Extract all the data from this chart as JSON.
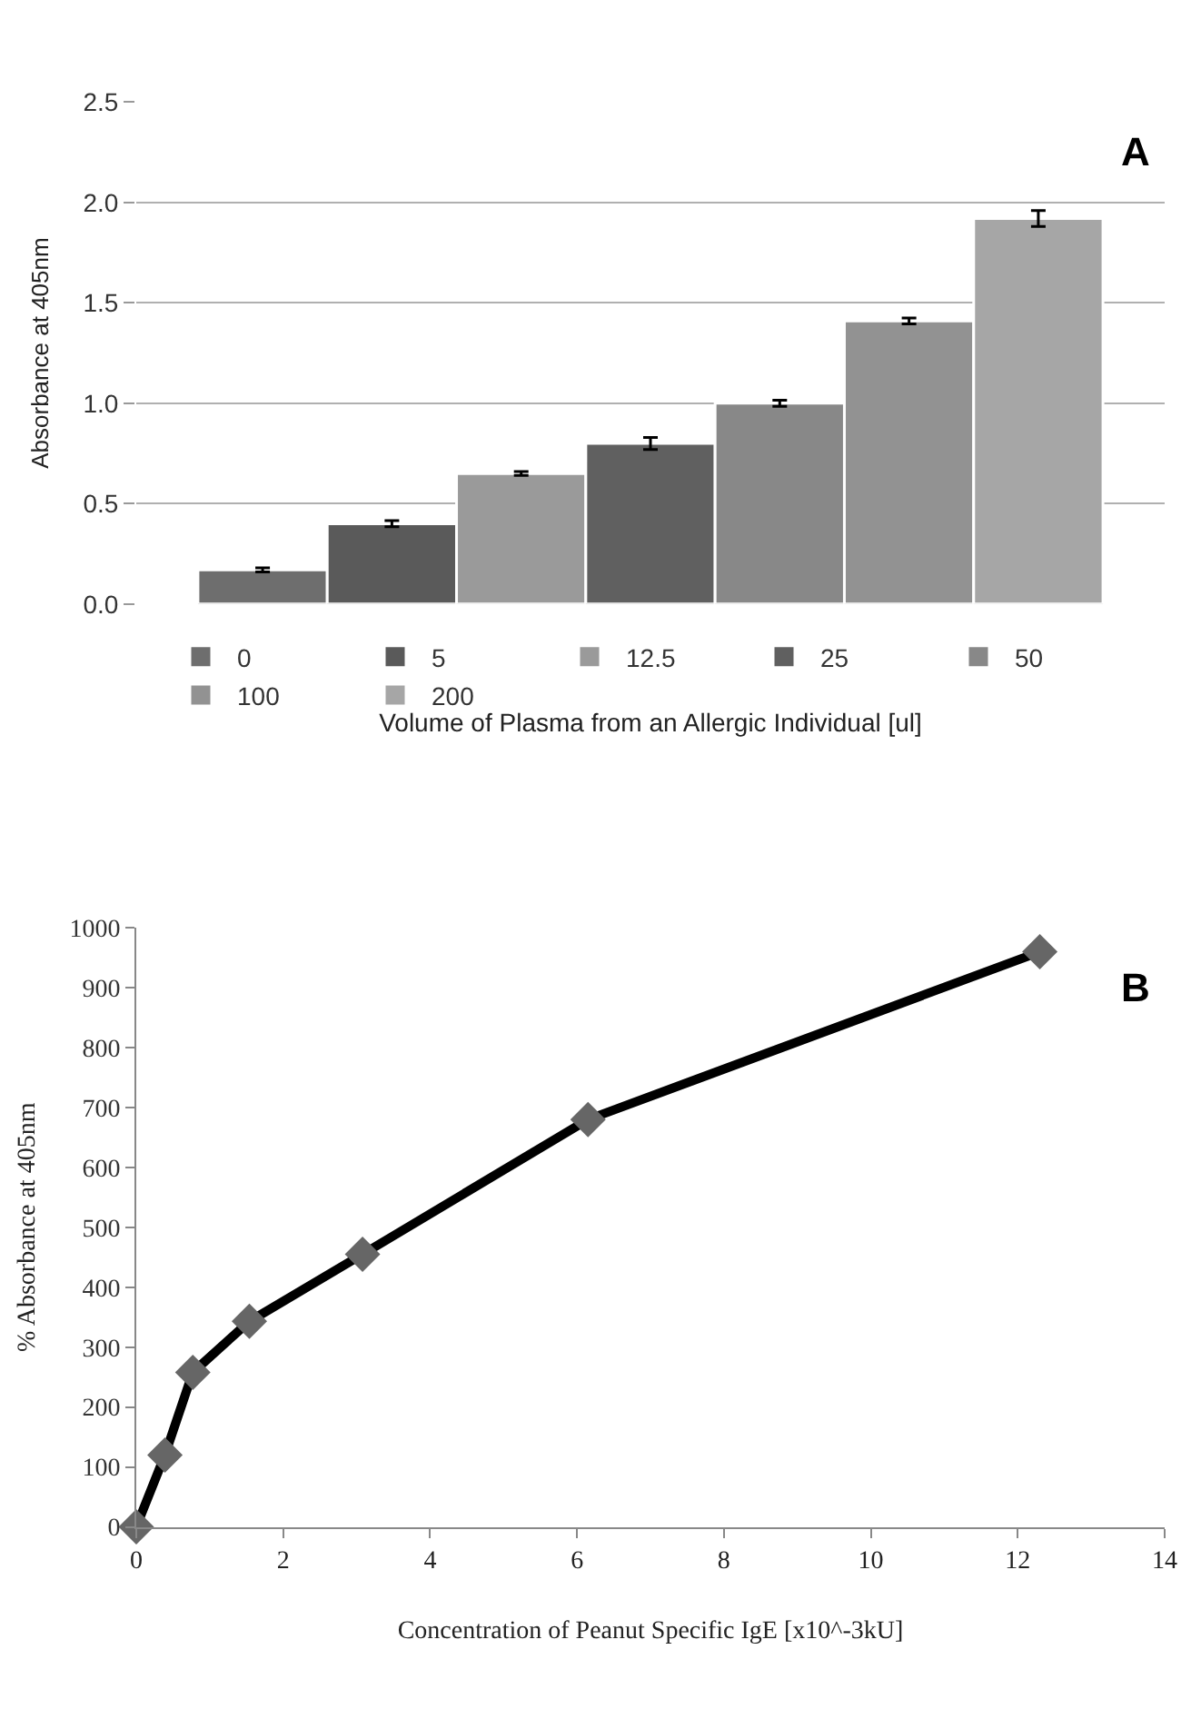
{
  "chart_data": [
    {
      "type": "bar",
      "categories": [
        null
      ],
      "xlabel": "Volume of Plasma from an Allergic Individual [ul]",
      "ylabel": "Absorbance at 405nm",
      "ylim": [
        0,
        2.5
      ],
      "yticks": [
        {
          "value": 0,
          "label": "0.0"
        },
        {
          "value": 0.5,
          "label": "0.5"
        },
        {
          "value": 1,
          "label": "1.0"
        },
        {
          "value": 1.5,
          "label": "1.5"
        },
        {
          "value": 2,
          "label": "2.0"
        },
        {
          "value": 2.5,
          "label": "2.5"
        }
      ],
      "grid": "y",
      "legend": "bottom",
      "annotations": [
        "A"
      ],
      "series": [
        {
          "name": "0",
          "color": "#6e6e6e",
          "values": [
            0.17
          ],
          "errors": [
            0.01
          ]
        },
        {
          "name": "5",
          "color": "#5a5a5a",
          "values": [
            0.4
          ],
          "errors": [
            0.015
          ]
        },
        {
          "name": "12.5",
          "color": "#9a9a9a",
          "values": [
            0.65
          ],
          "errors": [
            0.01
          ]
        },
        {
          "name": "25",
          "color": "#606060",
          "values": [
            0.8
          ],
          "errors": [
            0.03
          ]
        },
        {
          "name": "50",
          "color": "#888888",
          "values": [
            1.0
          ],
          "errors": [
            0.015
          ]
        },
        {
          "name": "100",
          "color": "#929292",
          "values": [
            1.41
          ],
          "errors": [
            0.015
          ]
        },
        {
          "name": "200",
          "color": "#a6a6a6",
          "values": [
            1.92
          ],
          "errors": [
            0.04
          ]
        }
      ]
    },
    {
      "type": "line",
      "xlabel": "Concentration of Peanut Specific IgE [x10^-3kU]",
      "ylabel": "% Absorbance at 405nm",
      "xlim": [
        0,
        14
      ],
      "xticks": [
        0,
        2,
        4,
        6,
        8,
        10,
        12,
        14
      ],
      "ylim": [
        0,
        1000
      ],
      "yticks": [
        0,
        100,
        200,
        300,
        400,
        500,
        600,
        700,
        800,
        900,
        1000
      ],
      "grid": false,
      "legend": false,
      "marker": "diamond",
      "line_style": "solid",
      "annotations": [
        "B"
      ],
      "x": [
        0,
        0.39,
        0.77,
        1.54,
        3.08,
        6.15,
        12.3
      ],
      "series": [
        {
          "color": "#000000",
          "values": [
            0,
            120,
            258,
            343,
            455,
            680,
            960
          ]
        }
      ]
    }
  ]
}
